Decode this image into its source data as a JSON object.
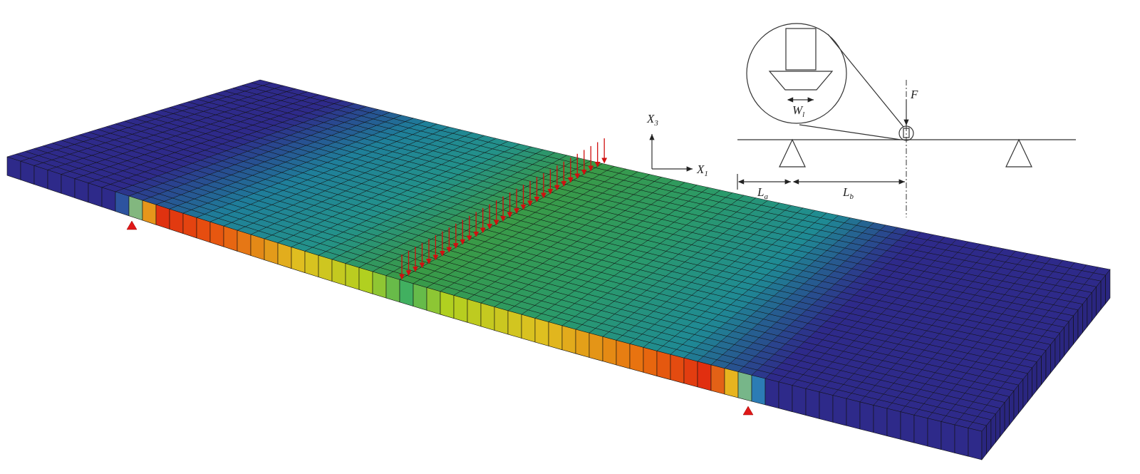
{
  "axes": {
    "x3": {
      "base": "X",
      "sub": "3"
    },
    "x1": {
      "base": "X",
      "sub": "1"
    }
  },
  "schematic": {
    "force": "F",
    "load_width": {
      "base": "W",
      "sub": "l"
    },
    "span_a": {
      "base": "L",
      "sub": "a"
    },
    "span_b": {
      "base": "L",
      "sub": "b"
    }
  }
}
